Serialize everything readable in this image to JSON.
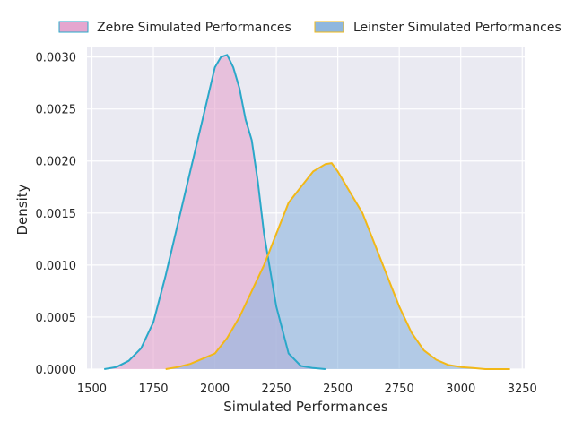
{
  "chart_data": {
    "type": "area",
    "title": "",
    "xlabel": "Simulated Performances",
    "ylabel": "Density",
    "xlim": [
      1480,
      3260
    ],
    "ylim": [
      0,
      0.0031
    ],
    "grid": true,
    "legend_position": "top",
    "x_ticks": [
      1500,
      1750,
      2000,
      2250,
      2500,
      2750,
      3000,
      3250
    ],
    "x_tick_labels": [
      "1500",
      "1750",
      "2000",
      "2250",
      "2500",
      "2750",
      "3000",
      "3250"
    ],
    "y_ticks": [
      0,
      0.0005,
      0.001,
      0.0015,
      0.002,
      0.0025,
      0.003
    ],
    "y_tick_labels": [
      "0.0000",
      "0.0005",
      "0.0010",
      "0.0015",
      "0.0020",
      "0.0025",
      "0.0030"
    ],
    "series": [
      {
        "name": "Zebre Simulated Performances",
        "fill": "#e5a6cf",
        "stroke": "#2aa8c9",
        "x": [
          1550,
          1600,
          1650,
          1700,
          1750,
          1800,
          1850,
          1900,
          1950,
          2000,
          2025,
          2050,
          2075,
          2100,
          2125,
          2150,
          2175,
          2200,
          2250,
          2300,
          2350,
          2400,
          2450
        ],
        "y": [
          0.0,
          2e-05,
          8e-05,
          0.0002,
          0.00045,
          0.0009,
          0.0014,
          0.0019,
          0.0024,
          0.0029,
          0.003,
          0.00302,
          0.0029,
          0.0027,
          0.0024,
          0.0022,
          0.0018,
          0.0013,
          0.0006,
          0.00015,
          3e-05,
          1e-05,
          0.0
        ]
      },
      {
        "name": "Leinster Simulated Performances",
        "fill": "#8fb7de",
        "stroke": "#f2b817",
        "x": [
          1800,
          1850,
          1900,
          1950,
          2000,
          2050,
          2100,
          2150,
          2200,
          2250,
          2300,
          2350,
          2400,
          2450,
          2475,
          2500,
          2550,
          2600,
          2650,
          2700,
          2750,
          2800,
          2850,
          2900,
          2950,
          3000,
          3050,
          3100,
          3150,
          3200
        ],
        "y": [
          0.0,
          2e-05,
          5e-05,
          0.0001,
          0.00015,
          0.0003,
          0.0005,
          0.00075,
          0.001,
          0.0013,
          0.0016,
          0.00175,
          0.0019,
          0.00197,
          0.00198,
          0.0019,
          0.0017,
          0.0015,
          0.0012,
          0.0009,
          0.0006,
          0.00035,
          0.00018,
          9e-05,
          4e-05,
          2e-05,
          1e-05,
          0.0,
          0.0,
          0.0
        ]
      }
    ]
  }
}
